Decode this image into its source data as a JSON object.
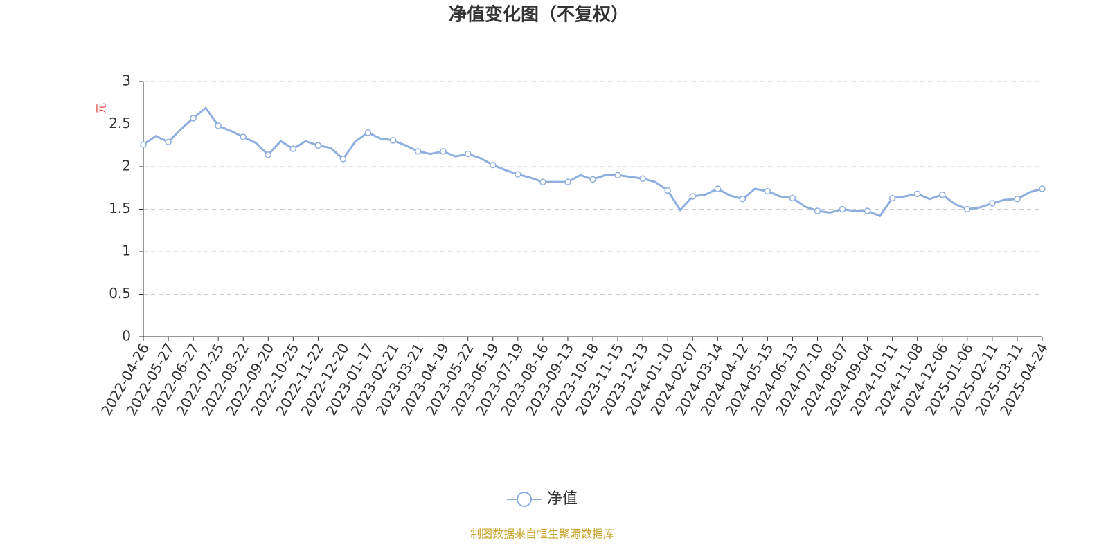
{
  "chart_data": {
    "type": "line",
    "title": "净值变化图（不复权）",
    "y_label": "元",
    "source": "制图数据来自恒生聚源数据库",
    "categories": [
      "2022-04-26",
      null,
      "2022-05-27",
      null,
      "2022-06-27",
      null,
      "2022-07-25",
      null,
      "2022-08-22",
      null,
      "2022-09-20",
      null,
      "2022-10-25",
      null,
      "2022-11-22",
      null,
      "2022-12-20",
      null,
      "2023-01-17",
      null,
      "2023-02-21",
      null,
      "2023-03-21",
      null,
      "2023-04-19",
      null,
      "2023-05-22",
      null,
      "2023-06-19",
      null,
      "2023-07-19",
      null,
      "2023-08-16",
      null,
      "2023-09-13",
      null,
      "2023-10-18",
      null,
      "2023-11-15",
      null,
      "2023-12-13",
      null,
      "2024-01-10",
      null,
      "2024-02-07",
      null,
      "2024-03-14",
      null,
      "2024-04-12",
      null,
      "2024-05-15",
      null,
      "2024-06-13",
      null,
      "2024-07-10",
      null,
      "2024-08-07",
      null,
      "2024-09-04",
      null,
      "2024-10-11",
      null,
      "2024-11-08",
      null,
      "2024-12-06",
      null,
      "2025-01-06",
      null,
      "2025-02-11",
      null,
      "2025-03-11",
      null,
      "2025-04-24"
    ],
    "series": [
      {
        "name": "净值",
        "color": "#8eaedd",
        "values": [
          2.26,
          2.36,
          2.29,
          2.44,
          2.57,
          2.69,
          2.48,
          2.42,
          2.35,
          2.28,
          2.14,
          2.3,
          2.21,
          2.3,
          2.25,
          2.22,
          2.09,
          2.3,
          2.4,
          2.33,
          2.31,
          2.25,
          2.18,
          2.15,
          2.18,
          2.12,
          2.15,
          2.1,
          2.02,
          1.96,
          1.91,
          1.87,
          1.82,
          1.82,
          1.82,
          1.9,
          1.85,
          1.9,
          1.9,
          1.88,
          1.86,
          1.82,
          1.72,
          1.49,
          1.65,
          1.67,
          1.74,
          1.66,
          1.62,
          1.74,
          1.71,
          1.65,
          1.63,
          1.53,
          1.48,
          1.46,
          1.5,
          1.48,
          1.48,
          1.42,
          1.63,
          1.65,
          1.68,
          1.62,
          1.67,
          1.56,
          1.5,
          1.52,
          1.57,
          1.61,
          1.62,
          1.7,
          1.74
        ]
      }
    ],
    "ylim": [
      0,
      3
    ],
    "yticks": [
      0,
      0.5,
      1,
      1.5,
      2,
      2.5,
      3
    ],
    "grid": true
  }
}
